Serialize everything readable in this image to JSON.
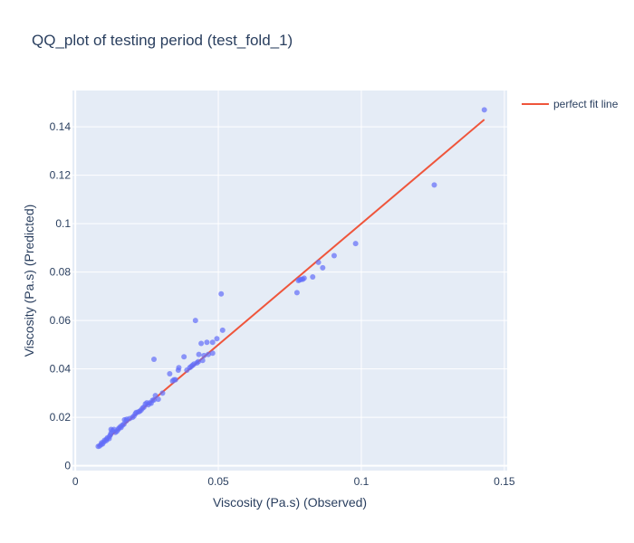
{
  "chart_data": {
    "type": "scatter",
    "title": "QQ_plot of testing period (test_fold_1)",
    "xlabel": "Viscosity (Pa.s) (Observed)",
    "ylabel": "Viscosity (Pa.s) (Predicted)",
    "xlim": [
      -0.001,
      0.151
    ],
    "ylim": [
      -0.002,
      0.155
    ],
    "x_ticks": [
      0,
      0.05,
      0.1,
      0.15
    ],
    "x_tick_labels": [
      "0",
      "0.05",
      "0.1",
      "0.15"
    ],
    "y_ticks": [
      0,
      0.02,
      0.04,
      0.06,
      0.08,
      0.1,
      0.12,
      0.14
    ],
    "y_tick_labels": [
      "0",
      "0.02",
      "0.04",
      "0.06",
      "0.08",
      "0.1",
      "0.12",
      "0.14"
    ],
    "grid": true,
    "legend_position": "top-right",
    "plot_bg_color": "#e5ecf6",
    "grid_color": "#ffffff",
    "series": [
      {
        "mode": "markers",
        "color": "#636efa",
        "opacity": 0.7,
        "points": [
          [
            0.008,
            0.008
          ],
          [
            0.0085,
            0.0082
          ],
          [
            0.009,
            0.0088
          ],
          [
            0.0092,
            0.0095
          ],
          [
            0.0095,
            0.009
          ],
          [
            0.01,
            0.0098
          ],
          [
            0.0102,
            0.0105
          ],
          [
            0.0108,
            0.0104
          ],
          [
            0.011,
            0.011
          ],
          [
            0.0112,
            0.0115
          ],
          [
            0.0118,
            0.0112
          ],
          [
            0.012,
            0.0122
          ],
          [
            0.0123,
            0.0128
          ],
          [
            0.0125,
            0.0135
          ],
          [
            0.0125,
            0.015
          ],
          [
            0.013,
            0.0145
          ],
          [
            0.0135,
            0.015
          ],
          [
            0.014,
            0.0138
          ],
          [
            0.0145,
            0.0142
          ],
          [
            0.015,
            0.015
          ],
          [
            0.0152,
            0.0155
          ],
          [
            0.0158,
            0.0162
          ],
          [
            0.016,
            0.0158
          ],
          [
            0.0165,
            0.0168
          ],
          [
            0.017,
            0.0172
          ],
          [
            0.0172,
            0.019
          ],
          [
            0.0178,
            0.0185
          ],
          [
            0.018,
            0.0192
          ],
          [
            0.019,
            0.0195
          ],
          [
            0.02,
            0.02
          ],
          [
            0.0205,
            0.0205
          ],
          [
            0.021,
            0.0215
          ],
          [
            0.0213,
            0.022
          ],
          [
            0.022,
            0.0222
          ],
          [
            0.0225,
            0.0225
          ],
          [
            0.023,
            0.023
          ],
          [
            0.0235,
            0.0238
          ],
          [
            0.024,
            0.0242
          ],
          [
            0.0245,
            0.0255
          ],
          [
            0.025,
            0.026
          ],
          [
            0.0255,
            0.0252
          ],
          [
            0.026,
            0.026
          ],
          [
            0.0265,
            0.0258
          ],
          [
            0.027,
            0.027
          ],
          [
            0.0275,
            0.0272
          ],
          [
            0.028,
            0.029
          ],
          [
            0.0275,
            0.044
          ],
          [
            0.029,
            0.0275
          ],
          [
            0.0305,
            0.03
          ],
          [
            0.033,
            0.038
          ],
          [
            0.034,
            0.035
          ],
          [
            0.0345,
            0.0355
          ],
          [
            0.035,
            0.0355
          ],
          [
            0.036,
            0.0395
          ],
          [
            0.0362,
            0.0405
          ],
          [
            0.038,
            0.045
          ],
          [
            0.039,
            0.0395
          ],
          [
            0.04,
            0.0405
          ],
          [
            0.0405,
            0.041
          ],
          [
            0.041,
            0.0415
          ],
          [
            0.0415,
            0.042
          ],
          [
            0.042,
            0.06
          ],
          [
            0.0425,
            0.0425
          ],
          [
            0.043,
            0.043
          ],
          [
            0.0432,
            0.046
          ],
          [
            0.044,
            0.0505
          ],
          [
            0.0445,
            0.0435
          ],
          [
            0.045,
            0.0455
          ],
          [
            0.046,
            0.051
          ],
          [
            0.0465,
            0.046
          ],
          [
            0.048,
            0.0465
          ],
          [
            0.048,
            0.051
          ],
          [
            0.0495,
            0.0525
          ],
          [
            0.051,
            0.071
          ],
          [
            0.0515,
            0.056
          ],
          [
            0.0775,
            0.0715
          ],
          [
            0.078,
            0.0765
          ],
          [
            0.0785,
            0.0768
          ],
          [
            0.079,
            0.077
          ],
          [
            0.0795,
            0.077
          ],
          [
            0.08,
            0.0775
          ],
          [
            0.083,
            0.078
          ],
          [
            0.085,
            0.084
          ],
          [
            0.0865,
            0.0818
          ],
          [
            0.0905,
            0.0868
          ],
          [
            0.098,
            0.0918
          ],
          [
            0.1255,
            0.116
          ],
          [
            0.143,
            0.147
          ]
        ]
      },
      {
        "name": "perfect fit line",
        "mode": "line",
        "color": "#ef553b",
        "x": [
          0.008,
          0.143
        ],
        "y": [
          0.008,
          0.143
        ]
      }
    ]
  }
}
